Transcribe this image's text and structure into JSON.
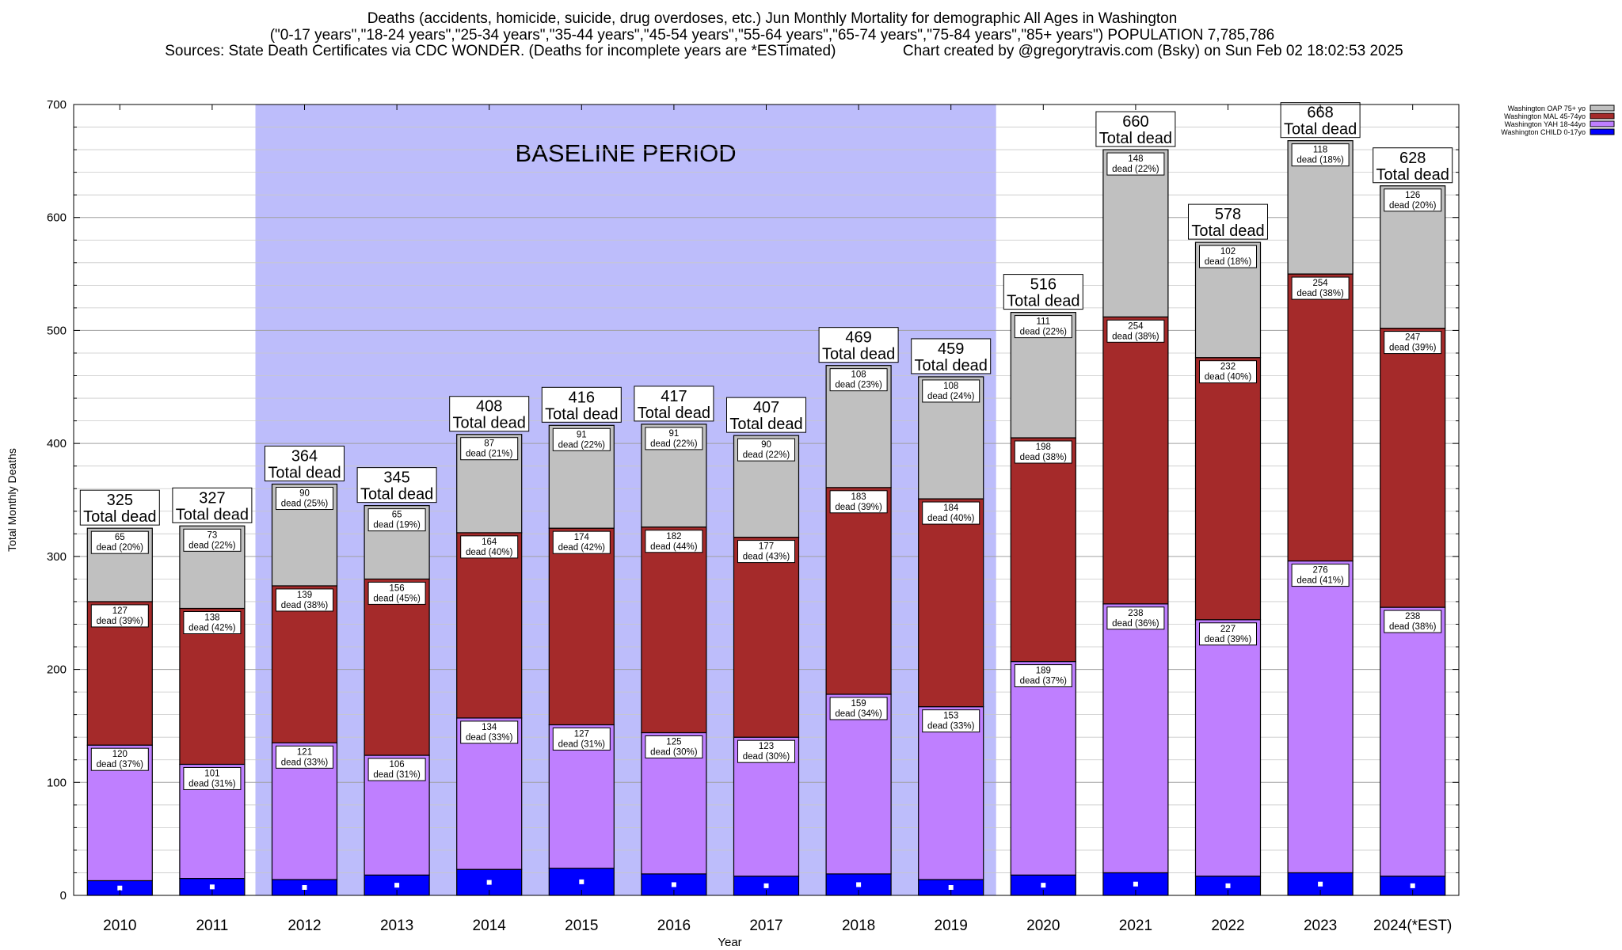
{
  "header": {
    "title_line1": "Deaths (accidents, homicide, suicide, drug overdoses, etc.) Jun Monthly Mortality for demographic All Ages in Washington",
    "title_line2": "(\"0-17 years\",\"18-24 years\",\"25-34 years\",\"35-44 years\",\"45-54 years\",\"55-64 years\",\"65-74 years\",\"75-84 years\",\"85+ years\") POPULATION 7,785,786",
    "title_line3": "Sources: State Death Certificates via CDC WONDER. (Deaths for incomplete years are *ESTimated)                Chart created by @gregorytravis.com (Bsky) on Sun Feb 02 18:02:53 2025"
  },
  "chart_data": {
    "type": "bar",
    "stacked": true,
    "xlabel": "Year",
    "ylabel": "Total Monthly Deaths",
    "ylim": [
      0,
      700
    ],
    "yticks": [
      0,
      100,
      200,
      300,
      400,
      500,
      600,
      700
    ],
    "grid": true,
    "legend_position": "top-right",
    "baseline_label": "BASELINE PERIOD",
    "baseline_range": [
      "2012",
      "2019"
    ],
    "baseline_color": "#bdbdfb",
    "total_suffix": "Total dead",
    "segment_suffix": "dead",
    "categories": [
      "2010",
      "2011",
      "2012",
      "2013",
      "2014",
      "2015",
      "2016",
      "2017",
      "2018",
      "2019",
      "2020",
      "2021",
      "2022",
      "2023",
      "2024(*EST)"
    ],
    "totals": [
      325,
      327,
      364,
      345,
      408,
      416,
      417,
      407,
      469,
      459,
      516,
      660,
      578,
      668,
      628
    ],
    "series": [
      {
        "name": "Washington CHILD 0-17yo",
        "color": "#0000ff",
        "values": [
          13,
          15,
          14,
          18,
          23,
          24,
          19,
          17,
          19,
          14,
          18,
          20,
          17,
          20,
          17
        ],
        "labelled": false
      },
      {
        "name": "Washington YAH 18-44yo",
        "color": "#bf7fff",
        "values": [
          120,
          101,
          121,
          106,
          134,
          127,
          125,
          123,
          159,
          153,
          189,
          238,
          227,
          276,
          238
        ],
        "pcts": [
          "37%",
          "31%",
          "33%",
          "31%",
          "33%",
          "31%",
          "30%",
          "30%",
          "34%",
          "33%",
          "37%",
          "36%",
          "39%",
          "41%",
          "38%"
        ],
        "labelled": true
      },
      {
        "name": "Washington MAL 45-74yo",
        "color": "#a52a2a",
        "values": [
          127,
          138,
          139,
          156,
          164,
          174,
          182,
          177,
          183,
          184,
          198,
          254,
          232,
          254,
          247
        ],
        "pcts": [
          "39%",
          "42%",
          "38%",
          "45%",
          "40%",
          "42%",
          "44%",
          "43%",
          "39%",
          "40%",
          "38%",
          "38%",
          "40%",
          "38%",
          "39%"
        ],
        "labelled": true
      },
      {
        "name": "Washington OAP 75+ yo",
        "color": "#c0c0c0",
        "values": [
          65,
          73,
          90,
          65,
          87,
          91,
          91,
          90,
          108,
          108,
          111,
          148,
          102,
          118,
          126
        ],
        "pcts": [
          "20%",
          "22%",
          "25%",
          "19%",
          "21%",
          "22%",
          "22%",
          "22%",
          "23%",
          "24%",
          "22%",
          "22%",
          "18%",
          "18%",
          "20%"
        ],
        "labelled": true
      }
    ]
  }
}
